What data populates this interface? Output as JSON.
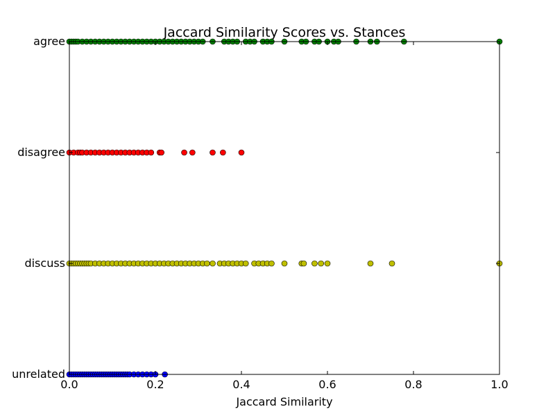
{
  "chart_data": {
    "type": "scatter",
    "title": "Jaccard Similarity Scores vs. Stances",
    "xlabel": "Jaccard Similarity",
    "ylabel": "",
    "xlim": [
      0.0,
      1.0
    ],
    "x_ticks": [
      "0.0",
      "0.2",
      "0.4",
      "0.6",
      "0.8",
      "1.0"
    ],
    "categories": [
      "unrelated",
      "discuss",
      "disagree",
      "agree"
    ],
    "grid": false,
    "series": [
      {
        "category": "agree",
        "color": "#008000",
        "x": [
          0.0,
          0.005,
          0.01,
          0.015,
          0.02,
          0.03,
          0.04,
          0.05,
          0.06,
          0.07,
          0.08,
          0.09,
          0.1,
          0.11,
          0.12,
          0.13,
          0.14,
          0.15,
          0.16,
          0.17,
          0.18,
          0.19,
          0.2,
          0.21,
          0.22,
          0.23,
          0.24,
          0.25,
          0.26,
          0.27,
          0.28,
          0.29,
          0.3,
          0.31,
          0.333,
          0.36,
          0.37,
          0.38,
          0.39,
          0.41,
          0.42,
          0.43,
          0.45,
          0.46,
          0.47,
          0.5,
          0.54,
          0.55,
          0.57,
          0.58,
          0.6,
          0.615,
          0.625,
          0.667,
          0.7,
          0.715,
          0.778,
          1.0
        ]
      },
      {
        "category": "disagree",
        "color": "#ff0000",
        "x": [
          0.0,
          0.01,
          0.02,
          0.025,
          0.03,
          0.04,
          0.05,
          0.06,
          0.07,
          0.08,
          0.09,
          0.1,
          0.11,
          0.12,
          0.13,
          0.14,
          0.15,
          0.16,
          0.17,
          0.18,
          0.19,
          0.21,
          0.214,
          0.267,
          0.286,
          0.333,
          0.357,
          0.4
        ]
      },
      {
        "category": "discuss",
        "color": "#bfbf00",
        "x": [
          0.0,
          0.005,
          0.01,
          0.015,
          0.02,
          0.025,
          0.03,
          0.035,
          0.04,
          0.045,
          0.05,
          0.06,
          0.07,
          0.08,
          0.09,
          0.1,
          0.11,
          0.12,
          0.13,
          0.14,
          0.15,
          0.16,
          0.17,
          0.18,
          0.19,
          0.2,
          0.21,
          0.22,
          0.23,
          0.24,
          0.25,
          0.26,
          0.27,
          0.28,
          0.29,
          0.3,
          0.31,
          0.32,
          0.333,
          0.35,
          0.36,
          0.37,
          0.38,
          0.39,
          0.4,
          0.41,
          0.43,
          0.44,
          0.45,
          0.46,
          0.47,
          0.5,
          0.54,
          0.545,
          0.57,
          0.585,
          0.6,
          0.7,
          0.75,
          1.0
        ]
      },
      {
        "category": "unrelated",
        "color": "#0000ff",
        "x": [
          0.0,
          0.005,
          0.01,
          0.015,
          0.02,
          0.025,
          0.03,
          0.035,
          0.04,
          0.045,
          0.05,
          0.055,
          0.06,
          0.065,
          0.07,
          0.075,
          0.08,
          0.085,
          0.09,
          0.095,
          0.1,
          0.105,
          0.11,
          0.115,
          0.12,
          0.125,
          0.13,
          0.135,
          0.14,
          0.15,
          0.16,
          0.17,
          0.18,
          0.19,
          0.2,
          0.222
        ]
      }
    ]
  }
}
